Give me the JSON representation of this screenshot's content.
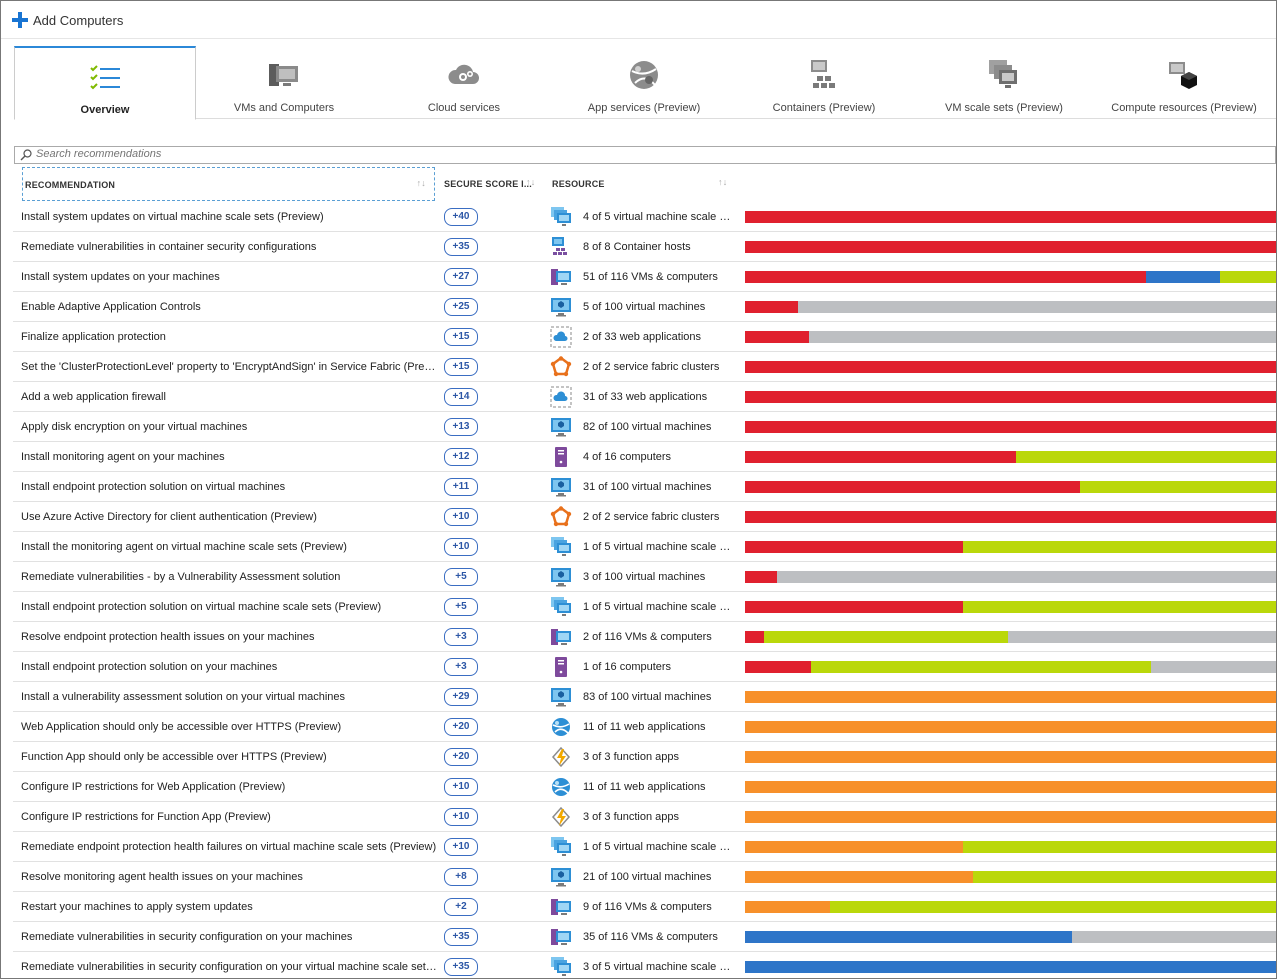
{
  "toolbar": {
    "add_label": "Add Computers"
  },
  "tabs": [
    {
      "label": "Overview",
      "icon": "checklist-icon",
      "active": true
    },
    {
      "label": "VMs and Computers",
      "icon": "vm-computer-icon"
    },
    {
      "label": "Cloud services",
      "icon": "cloud-gear-icon"
    },
    {
      "label": "App services (Preview)",
      "icon": "app-service-globe-icon"
    },
    {
      "label": "Containers (Preview)",
      "icon": "container-icon"
    },
    {
      "label": "VM scale sets (Preview)",
      "icon": "vm-scale-set-icon"
    },
    {
      "label": "Compute resources (Preview)",
      "icon": "compute-cube-icon"
    }
  ],
  "search": {
    "placeholder": "Search recommendations"
  },
  "columns": {
    "recommendation": "RECOMMENDATION",
    "score": "SECURE SCORE I...",
    "resource": "RESOURCE",
    "sort_glyph": "↑↓"
  },
  "colors": {
    "red": "#e0202e",
    "blue": "#2e75c8",
    "green": "#bad80a",
    "gray": "#bdbfc2",
    "orange": "#f7902a",
    "pill": "#3a6dc2"
  },
  "rows": [
    {
      "rec": "Install system updates on virtual machine scale sets (Preview)",
      "score": "+40",
      "icon": "vm-scale-set-icon",
      "resource": "4 of 5 virtual machine scale s...",
      "bar": [
        [
          "red",
          100
        ]
      ]
    },
    {
      "rec": "Remediate vulnerabilities in container security configurations",
      "score": "+35",
      "icon": "container-host-icon",
      "resource": "8 of 8 Container hosts",
      "bar": [
        [
          "red",
          100
        ]
      ]
    },
    {
      "rec": "Install system updates on your machines",
      "score": "+27",
      "icon": "vm-computer-icon",
      "resource": "51 of 116 VMs & computers",
      "bar": [
        [
          "red",
          75.5
        ],
        [
          "blue",
          14
        ],
        [
          "green",
          10.5
        ]
      ]
    },
    {
      "rec": "Enable Adaptive Application Controls",
      "score": "+25",
      "icon": "virtual-machine-icon",
      "resource": "5 of 100 virtual machines",
      "bar": [
        [
          "red",
          10
        ],
        [
          "gray",
          90
        ]
      ]
    },
    {
      "rec": "Finalize application protection",
      "score": "+15",
      "icon": "web-app-icon",
      "resource": "2 of 33 web applications",
      "bar": [
        [
          "red",
          12
        ],
        [
          "gray",
          88
        ]
      ]
    },
    {
      "rec": "Set the 'ClusterProtectionLevel' property to 'EncryptAndSign' in Service Fabric (Preview)",
      "score": "+15",
      "icon": "service-fabric-icon",
      "resource": "2 of 2 service fabric clusters",
      "bar": [
        [
          "red",
          100
        ]
      ]
    },
    {
      "rec": "Add a web application firewall",
      "score": "+14",
      "icon": "web-app-icon",
      "resource": "31 of 33 web applications",
      "bar": [
        [
          "red",
          100
        ]
      ]
    },
    {
      "rec": "Apply disk encryption on your virtual machines",
      "score": "+13",
      "icon": "virtual-machine-icon",
      "resource": "82 of 100 virtual machines",
      "bar": [
        [
          "red",
          100
        ]
      ]
    },
    {
      "rec": "Install monitoring agent on your machines",
      "score": "+12",
      "icon": "computer-icon",
      "resource": "4 of 16 computers",
      "bar": [
        [
          "red",
          51
        ],
        [
          "green",
          49
        ]
      ]
    },
    {
      "rec": "Install endpoint protection solution on virtual machines",
      "score": "+11",
      "icon": "virtual-machine-icon",
      "resource": "31 of 100 virtual machines",
      "bar": [
        [
          "red",
          63
        ],
        [
          "green",
          37
        ]
      ]
    },
    {
      "rec": "Use Azure Active Directory for client authentication (Preview)",
      "score": "+10",
      "icon": "service-fabric-icon",
      "resource": "2 of 2 service fabric clusters",
      "bar": [
        [
          "red",
          100
        ]
      ]
    },
    {
      "rec": "Install the monitoring agent on virtual machine scale sets (Preview)",
      "score": "+10",
      "icon": "vm-scale-set-icon",
      "resource": "1 of 5 virtual machine scale s...",
      "bar": [
        [
          "red",
          41
        ],
        [
          "green",
          59
        ]
      ]
    },
    {
      "rec": "Remediate vulnerabilities - by a Vulnerability Assessment solution",
      "score": "+5",
      "icon": "virtual-machine-icon",
      "resource": "3 of 100 virtual machines",
      "bar": [
        [
          "red",
          6
        ],
        [
          "gray",
          94
        ]
      ]
    },
    {
      "rec": "Install endpoint protection solution on virtual machine scale sets (Preview)",
      "score": "+5",
      "icon": "vm-scale-set-icon",
      "resource": "1 of 5 virtual machine scale s...",
      "bar": [
        [
          "red",
          41
        ],
        [
          "green",
          59
        ]
      ]
    },
    {
      "rec": "Resolve endpoint protection health issues on your machines",
      "score": "+3",
      "icon": "vm-computer-icon",
      "resource": "2 of 116 VMs & computers",
      "bar": [
        [
          "red",
          3.5
        ],
        [
          "green",
          46
        ],
        [
          "gray",
          50.5
        ]
      ]
    },
    {
      "rec": "Install endpoint protection solution on your machines",
      "score": "+3",
      "icon": "computer-icon",
      "resource": "1 of 16 computers",
      "bar": [
        [
          "red",
          12.5
        ],
        [
          "green",
          64
        ],
        [
          "gray",
          23.5
        ]
      ]
    },
    {
      "rec": "Install a vulnerability assessment solution on your virtual machines",
      "score": "+29",
      "icon": "virtual-machine-icon",
      "resource": "83 of 100 virtual machines",
      "bar": [
        [
          "orange",
          100
        ]
      ]
    },
    {
      "rec": "Web Application should only be accessible over HTTPS (Preview)",
      "score": "+20",
      "icon": "app-service-globe-icon",
      "resource": "11 of 11 web applications",
      "bar": [
        [
          "orange",
          100
        ]
      ]
    },
    {
      "rec": "Function App should only be accessible over HTTPS (Preview)",
      "score": "+20",
      "icon": "function-app-icon",
      "resource": "3 of 3 function apps",
      "bar": [
        [
          "orange",
          100
        ]
      ]
    },
    {
      "rec": "Configure IP restrictions for Web Application (Preview)",
      "score": "+10",
      "icon": "app-service-globe-icon",
      "resource": "11 of 11 web applications",
      "bar": [
        [
          "orange",
          100
        ]
      ]
    },
    {
      "rec": "Configure IP restrictions for Function App (Preview)",
      "score": "+10",
      "icon": "function-app-icon",
      "resource": "3 of 3 function apps",
      "bar": [
        [
          "orange",
          100
        ]
      ]
    },
    {
      "rec": "Remediate endpoint protection health failures on virtual machine scale sets (Preview)",
      "score": "+10",
      "icon": "vm-scale-set-icon",
      "resource": "1 of 5 virtual machine scale s...",
      "bar": [
        [
          "orange",
          41
        ],
        [
          "green",
          59
        ]
      ]
    },
    {
      "rec": "Resolve monitoring agent health issues on your machines",
      "score": "+8",
      "icon": "virtual-machine-icon",
      "resource": "21 of 100 virtual machines",
      "bar": [
        [
          "orange",
          43
        ],
        [
          "green",
          57
        ]
      ]
    },
    {
      "rec": "Restart your machines to apply system updates",
      "score": "+2",
      "icon": "vm-computer-icon",
      "resource": "9 of 116 VMs & computers",
      "bar": [
        [
          "orange",
          16
        ],
        [
          "green",
          84
        ]
      ]
    },
    {
      "rec": "Remediate vulnerabilities in security configuration on your machines",
      "score": "+35",
      "icon": "vm-computer-icon",
      "resource": "35 of 116 VMs & computers",
      "bar": [
        [
          "blue",
          61.5
        ],
        [
          "gray",
          38.5
        ]
      ]
    },
    {
      "rec": "Remediate vulnerabilities in security configuration on your virtual machine scale sets (Preview)",
      "score": "+35",
      "icon": "vm-scale-set-icon",
      "resource": "3 of 5 virtual machine scale s...",
      "bar": [
        [
          "blue",
          100
        ]
      ]
    }
  ]
}
